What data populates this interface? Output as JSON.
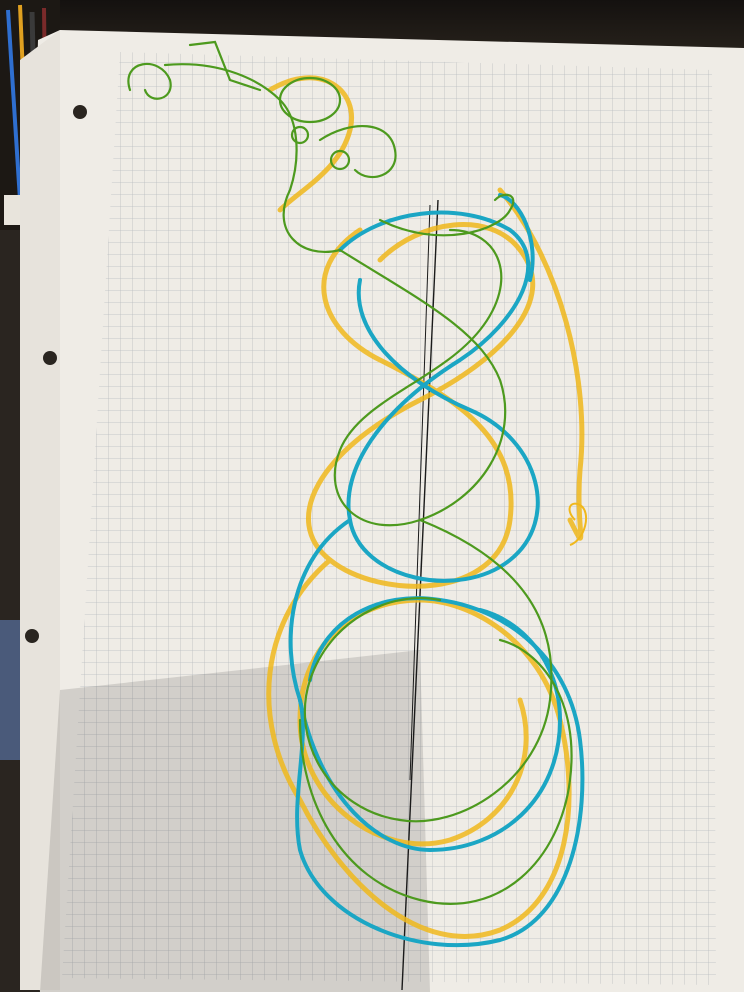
{
  "scene": {
    "subject": "graph-paper-sheet",
    "drawing": "celtic-knot-serpent",
    "colors": {
      "paper": "#efece6",
      "grid": "#b9bdc0",
      "ink_blue": "#1ba6c4",
      "ink_yellow": "#f0b81c",
      "ink_green": "#4d9a1e",
      "ink_black": "#1a1a1a",
      "background": "#2a2520"
    }
  }
}
